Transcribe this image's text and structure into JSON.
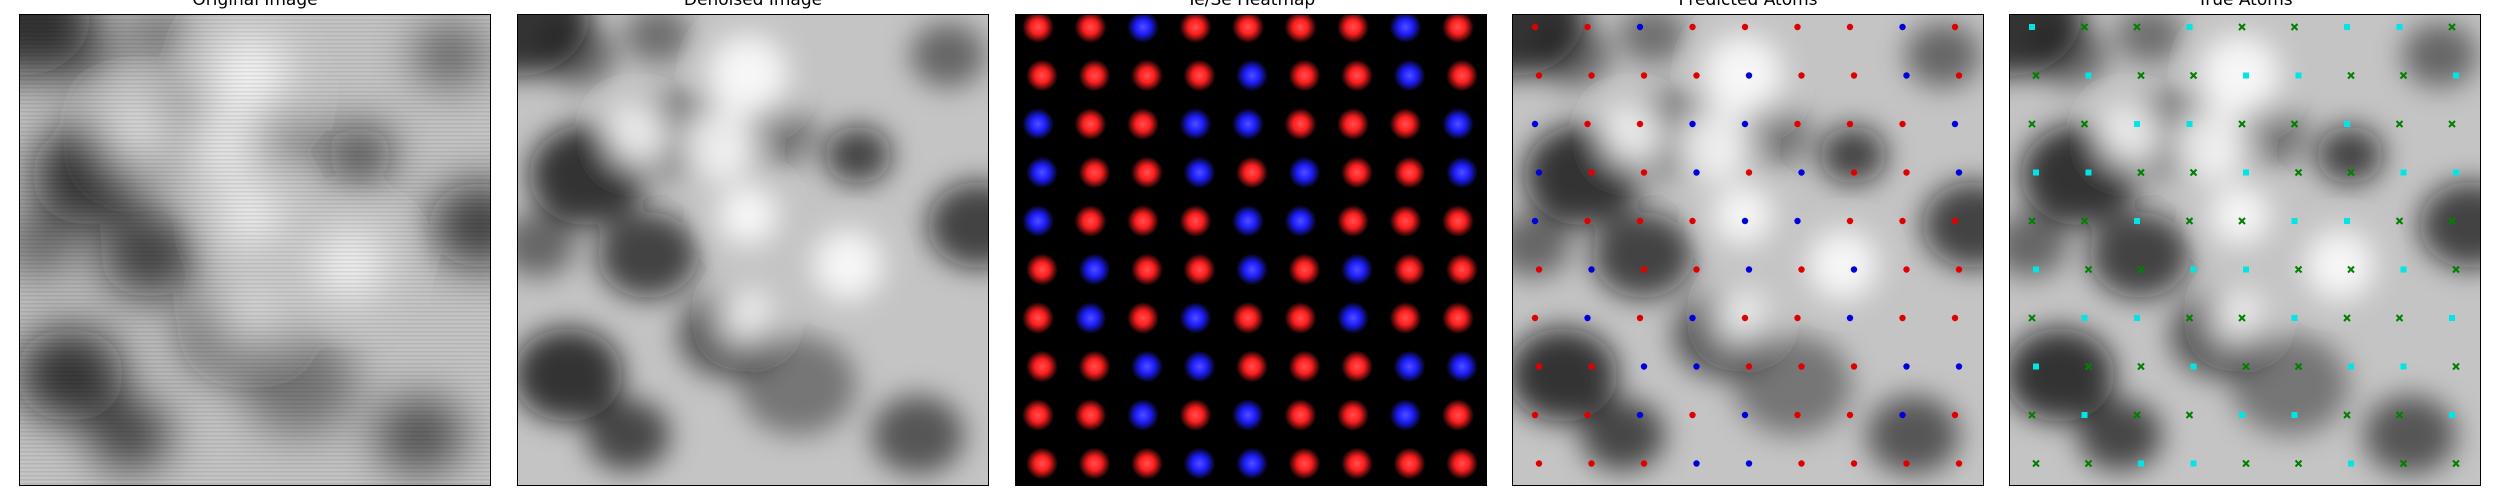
{
  "panels": [
    {
      "id": "p1",
      "title": "Original Image"
    },
    {
      "id": "p2",
      "title": "Denoised Image"
    },
    {
      "id": "p3",
      "title": "Te/Se Heatmap"
    },
    {
      "id": "p4",
      "title": "Predicted Atoms"
    },
    {
      "id": "p5",
      "title": "True Atoms"
    }
  ],
  "colors": {
    "te": "#ff1f1f",
    "se": "#1f1fff",
    "pred_te": "#e00000",
    "pred_se": "#0000dd",
    "true_cyan": "#00e5e5",
    "true_green": "#008000",
    "heatmap_background": "#000000"
  }
}
